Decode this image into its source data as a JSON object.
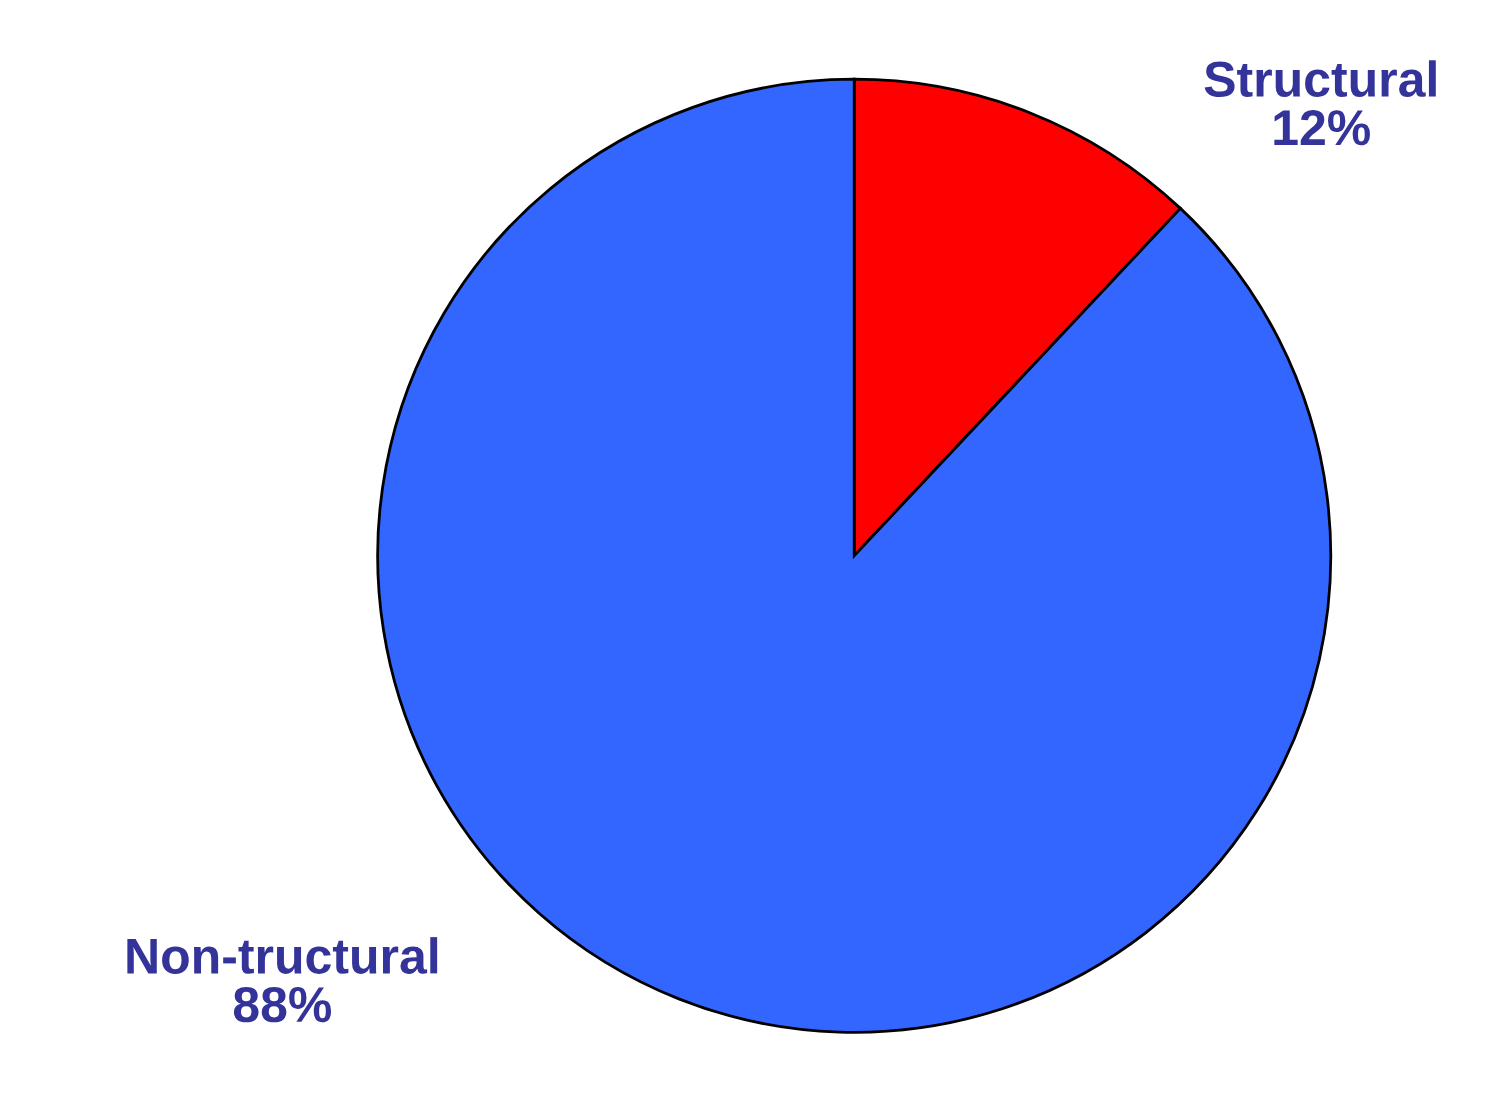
{
  "chart_data": {
    "type": "pie",
    "categories": [
      "Structural",
      "Non-tructural"
    ],
    "values": [
      12,
      88
    ],
    "colors": [
      "#ff0000",
      "#3366ff"
    ],
    "value_labels": [
      "12%",
      "88%"
    ]
  }
}
